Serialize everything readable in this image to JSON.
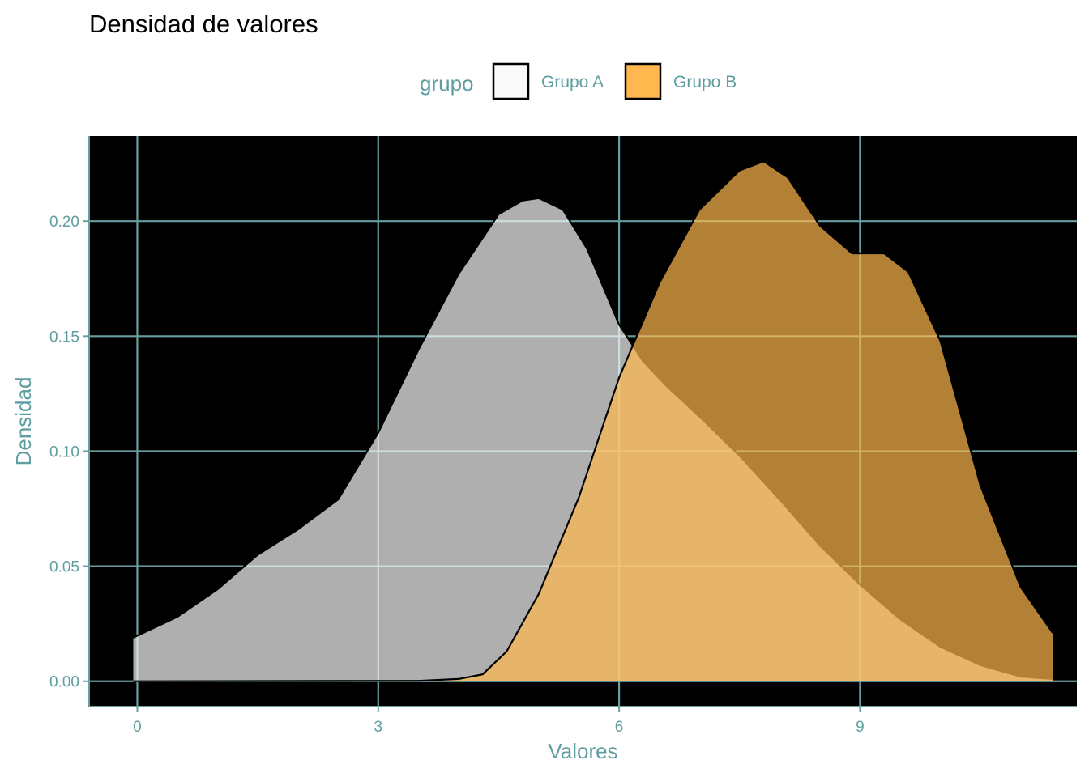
{
  "chart_data": {
    "type": "area",
    "subtype": "density",
    "title": "Densidad de valores",
    "xlabel": "Valores",
    "ylabel": "Densidad",
    "xlim": [
      -0.6,
      11.7
    ],
    "ylim": [
      -0.011,
      0.237
    ],
    "x_ticks": [
      0,
      3,
      6,
      9
    ],
    "x_tick_labels": [
      "0",
      "3",
      "6",
      "9"
    ],
    "y_ticks": [
      0,
      0.05,
      0.1,
      0.15,
      0.2
    ],
    "y_tick_labels": [
      "0.00",
      "0.05",
      "0.10",
      "0.15",
      "0.20"
    ],
    "grid": true,
    "panel_background": "#000000",
    "grid_color": "#6a9da0",
    "axis_text_color": "#5f9ea0",
    "legend": {
      "title": "grupo",
      "placement": "top",
      "entries": [
        "Grupo A",
        "Grupo B"
      ]
    },
    "series": [
      {
        "name": "Grupo A",
        "fill": "#f9f9f9",
        "opacity": 0.7,
        "points": [
          [
            -0.05,
            0.019
          ],
          [
            0.5,
            0.028
          ],
          [
            1.0,
            0.04
          ],
          [
            1.5,
            0.055
          ],
          [
            2.0,
            0.066
          ],
          [
            2.5,
            0.079
          ],
          [
            3.0,
            0.108
          ],
          [
            3.5,
            0.144
          ],
          [
            4.0,
            0.177
          ],
          [
            4.5,
            0.203
          ],
          [
            4.8,
            0.209
          ],
          [
            5.0,
            0.21
          ],
          [
            5.3,
            0.205
          ],
          [
            5.6,
            0.188
          ],
          [
            6.0,
            0.155
          ],
          [
            6.3,
            0.139
          ],
          [
            6.6,
            0.128
          ],
          [
            7.0,
            0.115
          ],
          [
            7.5,
            0.098
          ],
          [
            8.0,
            0.079
          ],
          [
            8.5,
            0.059
          ],
          [
            9.0,
            0.042
          ],
          [
            9.5,
            0.027
          ],
          [
            10.0,
            0.015
          ],
          [
            10.5,
            0.007
          ],
          [
            11.0,
            0.002
          ],
          [
            11.4,
            0.001
          ]
        ]
      },
      {
        "name": "Grupo B",
        "fill": "#ffb84d",
        "opacity": 0.7,
        "points": [
          [
            -0.05,
            0.0
          ],
          [
            3.5,
            0.0002
          ],
          [
            4.0,
            0.001
          ],
          [
            4.3,
            0.003
          ],
          [
            4.6,
            0.013
          ],
          [
            5.0,
            0.038
          ],
          [
            5.5,
            0.08
          ],
          [
            6.0,
            0.132
          ],
          [
            6.5,
            0.173
          ],
          [
            7.0,
            0.205
          ],
          [
            7.5,
            0.222
          ],
          [
            7.8,
            0.226
          ],
          [
            8.1,
            0.219
          ],
          [
            8.5,
            0.198
          ],
          [
            8.9,
            0.186
          ],
          [
            9.3,
            0.186
          ],
          [
            9.6,
            0.178
          ],
          [
            10.0,
            0.148
          ],
          [
            10.5,
            0.085
          ],
          [
            11.0,
            0.041
          ],
          [
            11.4,
            0.021
          ]
        ]
      }
    ]
  }
}
